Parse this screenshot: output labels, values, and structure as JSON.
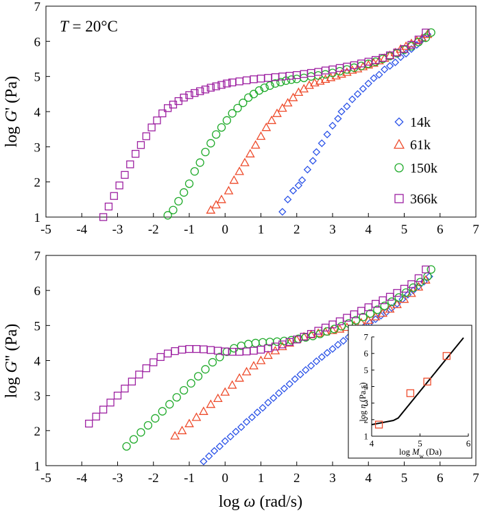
{
  "colors": {
    "14k": "#2a52e8",
    "61k": "#ee4a2a",
    "150k": "#1faa2a",
    "366k": "#9c1ea0",
    "inset_marker": "#ee4a2a",
    "line": "#000000"
  },
  "chart_data": [
    {
      "id": "top",
      "type": "scatter",
      "annotation": {
        "italic": "T",
        "text": " = 20°C"
      },
      "ylabel": {
        "prefix": "log ",
        "italic": "G",
        "suffix": "' (Pa)"
      },
      "xlabel": "",
      "xlim": [
        -5,
        7
      ],
      "ylim": [
        1,
        7
      ],
      "xticks": [
        "-5",
        "-4",
        "-3",
        "-2",
        "-1",
        "0",
        "1",
        "2",
        "3",
        "4",
        "5",
        "6",
        "7"
      ],
      "yticks": [
        "1",
        "2",
        "3",
        "4",
        "5",
        "6",
        "7"
      ],
      "legend": {
        "position": "right",
        "entries": [
          "14k",
          "61k",
          "150k",
          "366k"
        ]
      },
      "series": [
        {
          "name": "14k",
          "marker": "diamond",
          "x": [
            1.6,
            1.75,
            1.9,
            2.05,
            2.15,
            2.3,
            2.45,
            2.55,
            2.7,
            2.85,
            3.0,
            3.15,
            3.25,
            3.4,
            3.55,
            3.7,
            3.85,
            4.0,
            4.15,
            4.3,
            4.45,
            4.6,
            4.75,
            4.9,
            5.05,
            5.2,
            5.35,
            5.5,
            5.65
          ],
          "y": [
            1.15,
            1.5,
            1.75,
            1.9,
            2.05,
            2.35,
            2.6,
            2.85,
            3.1,
            3.35,
            3.6,
            3.8,
            4.0,
            4.15,
            4.35,
            4.5,
            4.65,
            4.8,
            4.95,
            5.05,
            5.2,
            5.3,
            5.4,
            5.55,
            5.65,
            5.78,
            5.9,
            6.05,
            6.2
          ]
        },
        {
          "name": "61k",
          "marker": "triangle",
          "x": [
            -0.4,
            -0.25,
            -0.1,
            0.1,
            0.25,
            0.4,
            0.55,
            0.7,
            0.85,
            1.0,
            1.15,
            1.3,
            1.45,
            1.6,
            1.75,
            1.9,
            2.05,
            2.2,
            2.35,
            2.5,
            2.65,
            2.8,
            2.95,
            3.1,
            3.25,
            3.4,
            3.55,
            3.7,
            3.85,
            4.0,
            4.15,
            4.3,
            4.45,
            4.6,
            4.75,
            4.9,
            5.05,
            5.2,
            5.35,
            5.5,
            5.65
          ],
          "y": [
            1.2,
            1.35,
            1.5,
            1.75,
            2.05,
            2.3,
            2.55,
            2.8,
            3.05,
            3.3,
            3.55,
            3.75,
            3.95,
            4.1,
            4.25,
            4.4,
            4.55,
            4.65,
            4.75,
            4.82,
            4.87,
            4.92,
            4.97,
            5.02,
            5.07,
            5.12,
            5.18,
            5.22,
            5.28,
            5.33,
            5.38,
            5.45,
            5.52,
            5.6,
            5.68,
            5.78,
            5.86,
            5.94,
            6.02,
            6.1,
            6.2
          ]
        },
        {
          "name": "150k",
          "marker": "circle",
          "x": [
            -1.6,
            -1.45,
            -1.3,
            -1.15,
            -1.0,
            -0.85,
            -0.7,
            -0.55,
            -0.4,
            -0.25,
            -0.1,
            0.05,
            0.2,
            0.35,
            0.5,
            0.65,
            0.8,
            0.95,
            1.1,
            1.25,
            1.4,
            1.55,
            1.7,
            1.85,
            2.0,
            2.2,
            2.4,
            2.6,
            2.8,
            3.0,
            3.2,
            3.4,
            3.6,
            3.8,
            4.0,
            4.2,
            4.4,
            4.6,
            4.8,
            5.0,
            5.2,
            5.4,
            5.6,
            5.75
          ],
          "y": [
            1.05,
            1.2,
            1.45,
            1.7,
            1.95,
            2.3,
            2.55,
            2.85,
            3.1,
            3.35,
            3.55,
            3.75,
            3.95,
            4.1,
            4.25,
            4.4,
            4.5,
            4.6,
            4.68,
            4.74,
            4.8,
            4.84,
            4.88,
            4.91,
            4.93,
            4.96,
            5.0,
            5.03,
            5.06,
            5.1,
            5.15,
            5.2,
            5.25,
            5.3,
            5.36,
            5.42,
            5.5,
            5.58,
            5.66,
            5.76,
            5.86,
            5.98,
            6.1,
            6.25
          ]
        },
        {
          "name": "366k",
          "marker": "square",
          "x": [
            -3.4,
            -3.25,
            -3.1,
            -2.95,
            -2.8,
            -2.65,
            -2.5,
            -2.35,
            -2.2,
            -2.05,
            -1.9,
            -1.75,
            -1.6,
            -1.45,
            -1.3,
            -1.15,
            -1.0,
            -0.85,
            -0.7,
            -0.55,
            -0.4,
            -0.25,
            -0.1,
            0.05,
            0.2,
            0.4,
            0.6,
            0.8,
            1.0,
            1.2,
            1.4,
            1.6,
            1.8,
            2.0,
            2.2,
            2.4,
            2.6,
            2.8,
            3.0,
            3.2,
            3.4,
            3.6,
            3.8,
            4.0,
            4.2,
            4.4,
            4.6,
            4.8,
            5.0,
            5.2,
            5.4,
            5.6
          ],
          "y": [
            1.0,
            1.3,
            1.6,
            1.9,
            2.2,
            2.5,
            2.8,
            3.05,
            3.3,
            3.55,
            3.75,
            3.95,
            4.1,
            4.2,
            4.3,
            4.4,
            4.47,
            4.53,
            4.58,
            4.63,
            4.68,
            4.72,
            4.76,
            4.8,
            4.83,
            4.86,
            4.89,
            4.92,
            4.94,
            4.96,
            4.98,
            5.0,
            5.02,
            5.04,
            5.07,
            5.1,
            5.13,
            5.17,
            5.2,
            5.24,
            5.28,
            5.32,
            5.37,
            5.42,
            5.47,
            5.53,
            5.6,
            5.68,
            5.78,
            5.9,
            6.05,
            6.25
          ]
        }
      ]
    },
    {
      "id": "bottom",
      "type": "scatter",
      "ylabel": {
        "prefix": "log ",
        "italic": "G",
        "suffix": "'' (Pa)"
      },
      "xlabel": {
        "prefix": "log ",
        "italic": "ω",
        "suffix": " (rad/s)"
      },
      "xlim": [
        -5,
        7
      ],
      "ylim": [
        1,
        7
      ],
      "xticks": [
        "-5",
        "-4",
        "-3",
        "-2",
        "-1",
        "0",
        "1",
        "2",
        "3",
        "4",
        "5",
        "6",
        "7"
      ],
      "yticks": [
        "1",
        "2",
        "3",
        "4",
        "5",
        "6",
        "7"
      ],
      "series": [
        {
          "name": "14k",
          "marker": "diamond",
          "x": [
            -0.6,
            -0.45,
            -0.3,
            -0.15,
            0.0,
            0.15,
            0.3,
            0.45,
            0.6,
            0.75,
            0.9,
            1.05,
            1.2,
            1.35,
            1.5,
            1.65,
            1.8,
            1.95,
            2.1,
            2.25,
            2.4,
            2.55,
            2.7,
            2.85,
            3.0,
            3.15,
            3.3,
            3.45,
            3.6,
            3.75,
            3.9,
            4.05,
            4.2,
            4.35,
            4.5,
            4.65,
            4.8,
            4.95,
            5.1,
            5.25,
            5.4,
            5.55,
            5.7
          ],
          "y": [
            1.12,
            1.27,
            1.42,
            1.55,
            1.7,
            1.83,
            1.97,
            2.1,
            2.25,
            2.38,
            2.52,
            2.65,
            2.8,
            2.93,
            3.07,
            3.2,
            3.33,
            3.47,
            3.6,
            3.73,
            3.85,
            3.98,
            4.1,
            4.22,
            4.33,
            4.45,
            4.56,
            4.67,
            4.78,
            4.88,
            4.98,
            5.08,
            5.18,
            5.28,
            5.38,
            5.5,
            5.62,
            5.75,
            5.88,
            6.0,
            6.12,
            6.25,
            6.4
          ]
        },
        {
          "name": "61k",
          "marker": "triangle",
          "x": [
            -1.4,
            -1.2,
            -1.0,
            -0.8,
            -0.6,
            -0.4,
            -0.2,
            0.0,
            0.2,
            0.4,
            0.6,
            0.8,
            1.0,
            1.2,
            1.4,
            1.6,
            1.8,
            2.0,
            2.2,
            2.4,
            2.6,
            2.8,
            3.0,
            3.2,
            3.4,
            3.6,
            3.8,
            4.0,
            4.2,
            4.4,
            4.6,
            4.8,
            5.0,
            5.2,
            5.4,
            5.6
          ],
          "y": [
            1.85,
            2.0,
            2.2,
            2.38,
            2.55,
            2.75,
            2.92,
            3.1,
            3.3,
            3.5,
            3.68,
            3.85,
            4.0,
            4.15,
            4.28,
            4.4,
            4.5,
            4.6,
            4.68,
            4.74,
            4.78,
            4.82,
            4.86,
            4.9,
            4.95,
            5.0,
            5.08,
            5.15,
            5.25,
            5.35,
            5.47,
            5.6,
            5.75,
            5.92,
            6.1,
            6.3
          ]
        },
        {
          "name": "150k",
          "marker": "circle",
          "x": [
            -2.75,
            -2.55,
            -2.35,
            -2.15,
            -1.95,
            -1.75,
            -1.55,
            -1.35,
            -1.15,
            -0.95,
            -0.75,
            -0.55,
            -0.35,
            -0.15,
            0.05,
            0.25,
            0.45,
            0.65,
            0.85,
            1.05,
            1.25,
            1.45,
            1.65,
            1.85,
            2.05,
            2.25,
            2.45,
            2.65,
            2.85,
            3.05,
            3.25,
            3.45,
            3.65,
            3.85,
            4.05,
            4.25,
            4.45,
            4.65,
            4.85,
            5.05,
            5.25,
            5.45,
            5.65,
            5.75
          ],
          "y": [
            1.55,
            1.75,
            1.95,
            2.15,
            2.35,
            2.55,
            2.75,
            2.95,
            3.15,
            3.35,
            3.55,
            3.75,
            3.95,
            4.1,
            4.25,
            4.35,
            4.42,
            4.47,
            4.5,
            4.52,
            4.53,
            4.54,
            4.56,
            4.58,
            4.62,
            4.66,
            4.7,
            4.76,
            4.83,
            4.9,
            4.98,
            5.06,
            5.15,
            5.24,
            5.34,
            5.45,
            5.56,
            5.68,
            5.8,
            5.94,
            6.08,
            6.24,
            6.4,
            6.6
          ]
        },
        {
          "name": "366k",
          "marker": "square",
          "x": [
            -3.8,
            -3.6,
            -3.4,
            -3.2,
            -3.0,
            -2.8,
            -2.6,
            -2.4,
            -2.2,
            -2.0,
            -1.8,
            -1.6,
            -1.4,
            -1.2,
            -1.0,
            -0.8,
            -0.6,
            -0.4,
            -0.2,
            0.0,
            0.2,
            0.4,
            0.6,
            0.8,
            1.0,
            1.2,
            1.4,
            1.6,
            1.8,
            2.0,
            2.2,
            2.4,
            2.6,
            2.8,
            3.0,
            3.2,
            3.4,
            3.6,
            3.8,
            4.0,
            4.2,
            4.4,
            4.6,
            4.8,
            5.0,
            5.2,
            5.4,
            5.6
          ],
          "y": [
            2.2,
            2.4,
            2.6,
            2.8,
            3.0,
            3.2,
            3.4,
            3.6,
            3.78,
            3.95,
            4.1,
            4.2,
            4.27,
            4.31,
            4.33,
            4.33,
            4.32,
            4.3,
            4.28,
            4.26,
            4.25,
            4.25,
            4.26,
            4.28,
            4.31,
            4.35,
            4.4,
            4.46,
            4.53,
            4.6,
            4.68,
            4.76,
            4.85,
            4.94,
            5.03,
            5.12,
            5.22,
            5.32,
            5.42,
            5.52,
            5.62,
            5.72,
            5.82,
            5.93,
            6.05,
            6.18,
            6.35,
            6.6
          ]
        }
      ]
    },
    {
      "id": "inset",
      "type": "scatter",
      "ylabel": {
        "prefix": "log ",
        "italic": "η",
        "suffix": " (Pa.s)"
      },
      "xlabel": {
        "prefix": "log ",
        "italic": "M",
        "sub": "w",
        "suffix": " (Da)"
      },
      "xlim": [
        4,
        6
      ],
      "ylim": [
        1,
        7
      ],
      "xticks": [
        "4",
        "5",
        "6"
      ],
      "yticks": [
        "1",
        "2",
        "3",
        "4",
        "5",
        "6",
        "7"
      ],
      "points": {
        "x": [
          4.15,
          4.8,
          5.15,
          5.55
        ],
        "y": [
          1.7,
          3.6,
          4.3,
          5.85
        ]
      },
      "fit_line": {
        "x": [
          4.0,
          4.45,
          4.55,
          5.9
        ],
        "y": [
          1.7,
          1.95,
          2.1,
          6.95
        ]
      }
    }
  ]
}
